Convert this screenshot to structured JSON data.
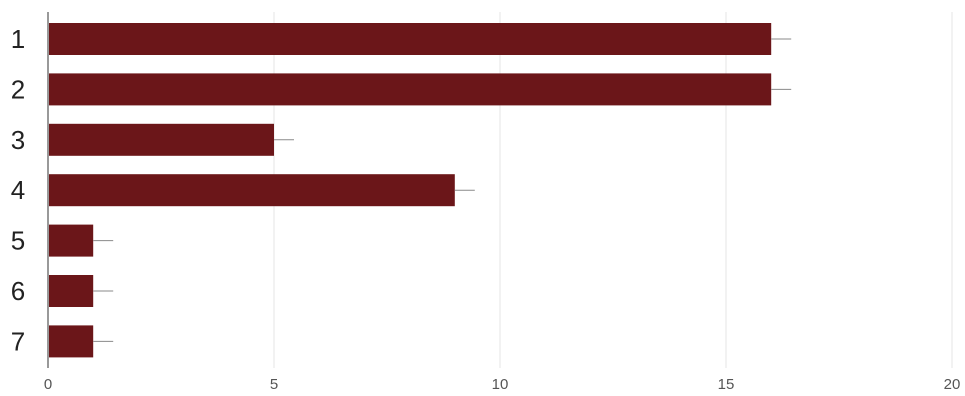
{
  "chart_data": {
    "type": "bar",
    "orientation": "horizontal",
    "categories": [
      "1",
      "2",
      "3",
      "4",
      "5",
      "6",
      "7"
    ],
    "values": [
      16,
      16,
      5,
      9,
      1,
      1,
      1
    ],
    "x_ticks": [
      "0",
      "5",
      "10",
      "15",
      "20"
    ],
    "xlim": [
      0,
      20
    ],
    "title": "",
    "xlabel": "",
    "ylabel": "",
    "grid": "vertical",
    "legend": "none",
    "bar_color": "#6b1619",
    "error_bars": true
  }
}
